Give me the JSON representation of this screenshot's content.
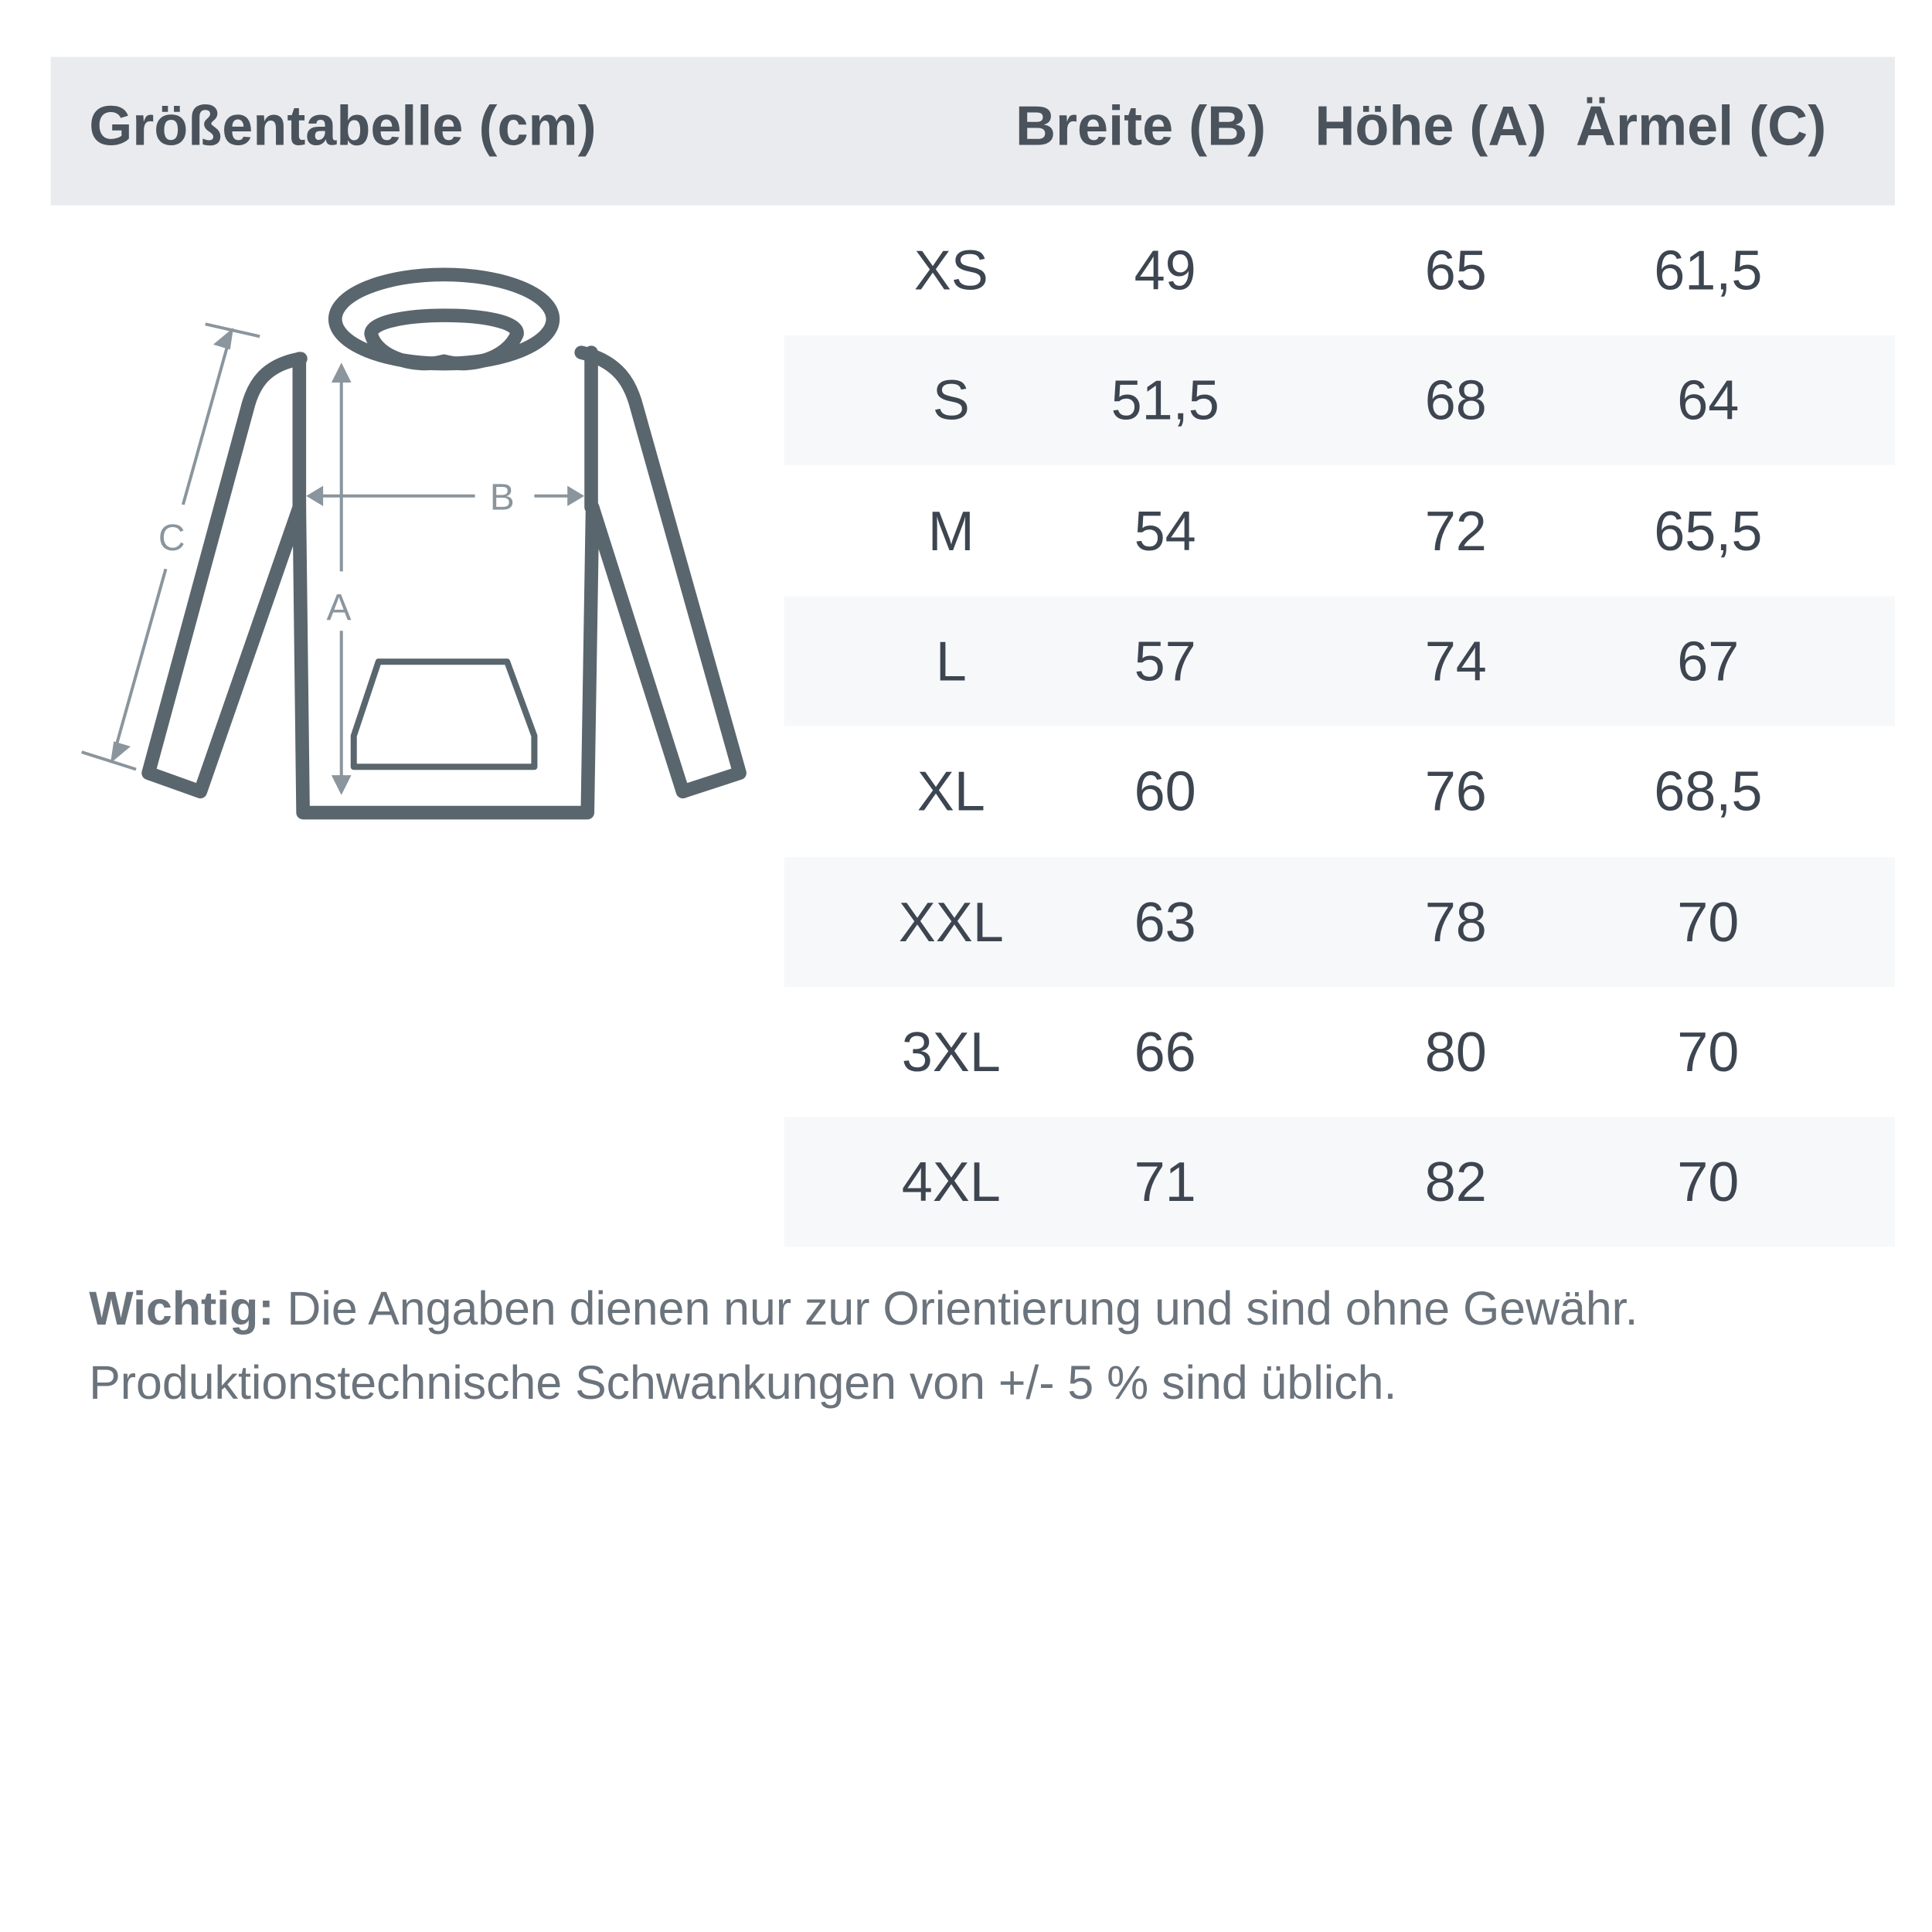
{
  "header": {
    "title": "Größentabelle (cm)",
    "columns": [
      "Breite (B)",
      "Höhe (A)",
      "Ärmel (C)"
    ]
  },
  "diagram": {
    "labels": {
      "a": "A",
      "b": "B",
      "c": "C"
    },
    "stroke_color": "#5a666d",
    "arrow_color": "#8a959d"
  },
  "rows": [
    {
      "size": "XS",
      "breite": "49",
      "hoehe": "65",
      "aermel": "61,5"
    },
    {
      "size": "S",
      "breite": "51,5",
      "hoehe": "68",
      "aermel": "64"
    },
    {
      "size": "M",
      "breite": "54",
      "hoehe": "72",
      "aermel": "65,5"
    },
    {
      "size": "L",
      "breite": "57",
      "hoehe": "74",
      "aermel": "67"
    },
    {
      "size": "XL",
      "breite": "60",
      "hoehe": "76",
      "aermel": "68,5"
    },
    {
      "size": "XXL",
      "breite": "63",
      "hoehe": "78",
      "aermel": "70"
    },
    {
      "size": "3XL",
      "breite": "66",
      "hoehe": "80",
      "aermel": "70"
    },
    {
      "size": "4XL",
      "breite": "71",
      "hoehe": "82",
      "aermel": "70"
    }
  ],
  "note": {
    "label": "Wichtig:",
    "line1": " Die Angaben dienen nur zur Orientierung und sind ohne Gewähr.",
    "line2": "Produktionstechnische Schwankungen von +/- 5 % sind üblich."
  }
}
